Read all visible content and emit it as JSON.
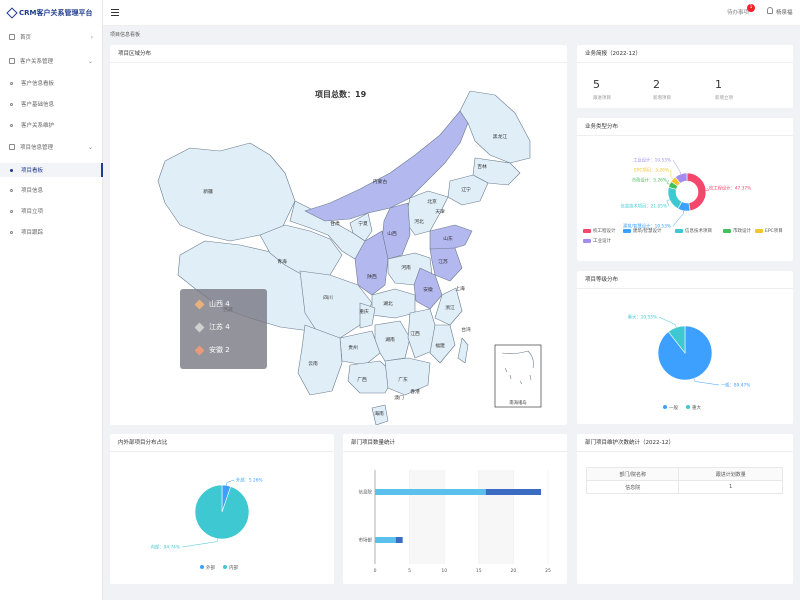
{
  "app": {
    "title": "CRM客户关系管理平台"
  },
  "sidebar": {
    "items": [
      {
        "label": "首页",
        "type": "group",
        "chevron": "›"
      },
      {
        "label": "客户关系管理",
        "type": "group",
        "chevron": "⌄"
      },
      {
        "label": "客户信息看板",
        "type": "sub"
      },
      {
        "label": "客户基础信息",
        "type": "sub"
      },
      {
        "label": "客户关系维护",
        "type": "sub"
      },
      {
        "label": "项目信息管理",
        "type": "group",
        "chevron": "⌄"
      },
      {
        "label": "项目看板",
        "type": "sub",
        "active": true
      },
      {
        "label": "项目信息",
        "type": "sub"
      },
      {
        "label": "项目立项",
        "type": "sub"
      },
      {
        "label": "项目跟踪",
        "type": "sub"
      }
    ]
  },
  "header": {
    "todo_label": "待办事项",
    "badge_count": "1",
    "user_name": "杨泉福"
  },
  "breadcrumb": "项目信息看板",
  "cards": {
    "map": {
      "title": "项目区域分布",
      "total_label": "项目总数：19",
      "tooltip": [
        {
          "label": "山西 4",
          "color": "#e8b07a"
        },
        {
          "label": "江苏 4",
          "color": "#d0d0d0"
        },
        {
          "label": "安徽 2",
          "color": "#e89a7a"
        }
      ],
      "province_labels": [
        "新疆",
        "西藏",
        "青海",
        "甘肃",
        "内蒙古",
        "黑龙江",
        "吉林",
        "辽宁",
        "北京",
        "天津",
        "河北",
        "山西",
        "陕西",
        "宁夏",
        "山东",
        "河南",
        "江苏",
        "安徽",
        "上海",
        "浙江",
        "湖北",
        "四川",
        "重庆",
        "湖南",
        "江西",
        "福建",
        "贵州",
        "云南",
        "广西",
        "广东",
        "台湾",
        "海南",
        "香港",
        "澳门"
      ],
      "inset_label": "南海诸岛"
    },
    "business": {
      "title": "业务简报（2022-12）",
      "stats": [
        {
          "num": "5",
          "label": "跟进项目"
        },
        {
          "num": "2",
          "label": "新增项目"
        },
        {
          "num": "1",
          "label": "新增立项"
        }
      ]
    },
    "business_type": {
      "title": "业务类型分布",
      "colors": {
        "校工程设计": "#f5476b",
        "建筑/智慧设计": "#3da0ff",
        "信息技术项目": "#3ec8d1",
        "市政设计": "#44c05b",
        "EPC项目": "#f5c42f",
        "工业设计": "#a48df2"
      }
    },
    "grade": {
      "title": "项目等级分布"
    },
    "inner_outer": {
      "title": "内外部项目分布占比"
    },
    "dept_count": {
      "title": "部门项目数量统计"
    },
    "dept_maint": {
      "title": "部门项目维护次数统计（2022-12）",
      "table": {
        "headers": [
          "部门/院名称",
          "跟进计划数量"
        ],
        "rows": [
          [
            "信息院",
            "1"
          ]
        ]
      }
    }
  },
  "chart_data": [
    {
      "type": "pie",
      "title": "业务类型分布",
      "donut": true,
      "slices": [
        {
          "name": "校工程设计",
          "value": 47.37,
          "label": "校工程设计：47.37%"
        },
        {
          "name": "建筑/智慧设计",
          "value": 10.53,
          "label": "建筑/智慧设计：10.53%"
        },
        {
          "name": "信息技术项目",
          "value": 21.05,
          "label": "信息技术项目：21.05%"
        },
        {
          "name": "市政设计",
          "value": 5.26,
          "label": "市政设计：5.26%"
        },
        {
          "name": "EPC项目",
          "value": 5.26,
          "label": "EPC项目：5.26%"
        },
        {
          "name": "工业设计",
          "value": 10.53,
          "label": "工业设计：10.53%"
        }
      ],
      "legend": [
        "校工程设计",
        "建筑/智慧设计",
        "信息技术项目",
        "市政设计",
        "EPC项目",
        "工业设计"
      ]
    },
    {
      "type": "pie",
      "title": "项目等级分布",
      "slices": [
        {
          "name": "一般",
          "value": 89.47,
          "color": "#3da0ff",
          "label": "一般：89.47%"
        },
        {
          "name": "重大",
          "value": 10.53,
          "color": "#3ec8d1",
          "label": "重大：10.53%"
        }
      ],
      "legend": [
        "一般",
        "重大"
      ]
    },
    {
      "type": "pie",
      "title": "内外部项目分布占比",
      "slices": [
        {
          "name": "外部",
          "value": 5.26,
          "color": "#3da0ff",
          "label": "外部：5.26%"
        },
        {
          "name": "内部",
          "value": 94.74,
          "color": "#3ec8d1",
          "label": "内部：94.74%"
        }
      ],
      "legend": [
        "外部",
        "内部"
      ]
    },
    {
      "type": "bar",
      "title": "部门项目数量统计",
      "orientation": "horizontal",
      "stacked": true,
      "categories": [
        "信息院",
        "市场部"
      ],
      "series": [
        {
          "values": [
            16,
            3
          ],
          "color": "#5bc0eb"
        },
        {
          "values": [
            8,
            1
          ],
          "color": "#3b6cc4"
        }
      ],
      "xlim": [
        0,
        25
      ],
      "xticks": [
        "0",
        "5",
        "10",
        "15",
        "20",
        "25"
      ]
    }
  ]
}
